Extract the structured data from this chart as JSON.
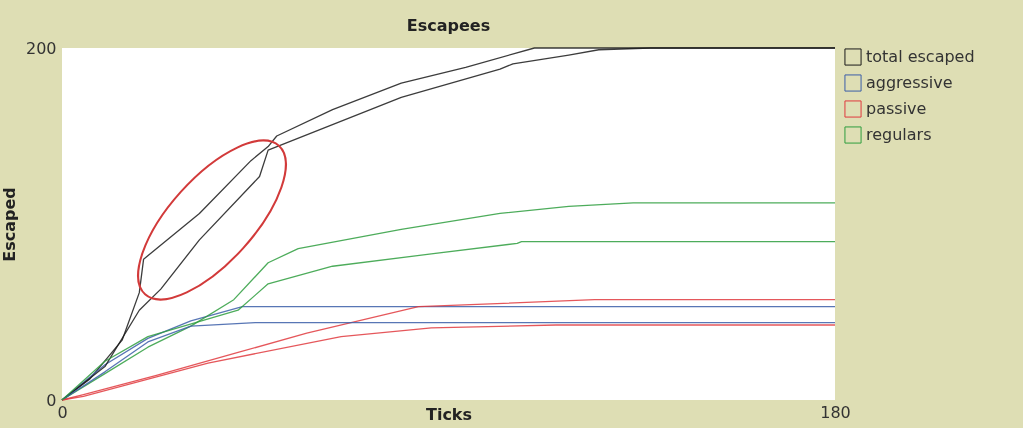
{
  "chart_data": {
    "type": "line",
    "title": "Escapees",
    "xlabel": "Ticks",
    "ylabel": "Escaped",
    "xlim": [
      0,
      180
    ],
    "xticks": [
      0,
      180
    ],
    "ylim": [
      0,
      200
    ],
    "yticks": [
      0,
      200
    ],
    "grid": false,
    "legend": "right",
    "series": [
      {
        "name": "total escaped",
        "color": "#1a1a1a",
        "x": [
          0,
          6.5,
          14,
          18,
          19,
          32,
          44,
          48,
          50,
          63,
          79,
          94,
          110,
          180
        ],
        "values": [
          0,
          12,
          34,
          61,
          80,
          106,
          136,
          144,
          150,
          165,
          180,
          189,
          200,
          200
        ]
      },
      {
        "name": "aggressive",
        "color": "#3b5ea8",
        "x": [
          0,
          10,
          20,
          30,
          42,
          180
        ],
        "values": [
          0,
          20,
          35,
          45,
          53,
          53
        ]
      },
      {
        "name": "passive",
        "color": "#e0393e",
        "x": [
          0,
          5,
          22,
          41,
          57,
          83,
          124,
          180
        ],
        "values": [
          0,
          3,
          14,
          27,
          38,
          53,
          57,
          57
        ]
      },
      {
        "name": "regulars",
        "color": "#2e9e3e",
        "x": [
          0,
          10,
          20,
          30,
          40,
          48,
          55,
          79,
          102,
          118,
          133,
          180
        ],
        "values": [
          0,
          15,
          30,
          42,
          57,
          78,
          86,
          97,
          106,
          110,
          112,
          112
        ]
      },
      {
        "color": "#1a1a1a",
        "x": [
          0,
          10,
          18,
          23,
          32,
          46,
          48,
          79,
          102,
          105,
          118,
          125,
          137,
          180
        ],
        "values": [
          0,
          19,
          51,
          63,
          91,
          127,
          142,
          172,
          188,
          191,
          196,
          199,
          200,
          200
        ]
      },
      {
        "color": "#3b5ea8",
        "x": [
          0,
          10,
          20,
          30,
          45,
          180
        ],
        "values": [
          0,
          16,
          33,
          42,
          44,
          44
        ]
      },
      {
        "color": "#e0393e",
        "x": [
          0,
          5,
          34,
          65,
          86,
          115,
          180
        ],
        "values": [
          0,
          2,
          21,
          36,
          41,
          42.6,
          42.6
        ]
      },
      {
        "color": "#2e9e3e",
        "x": [
          0,
          10,
          20,
          41,
          48,
          63,
          86,
          106,
          107,
          180
        ],
        "values": [
          0,
          22,
          36,
          51,
          66,
          76,
          83,
          89,
          90,
          90
        ]
      }
    ]
  }
}
